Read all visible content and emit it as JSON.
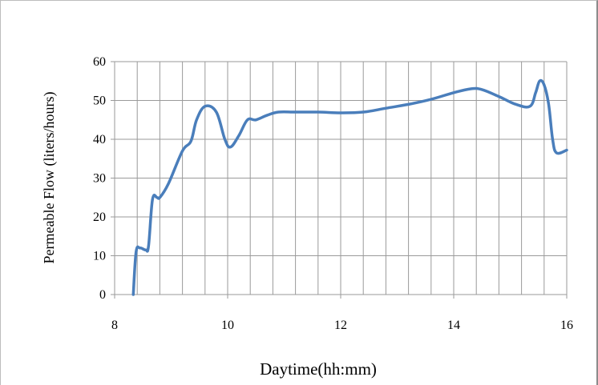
{
  "chart_data": {
    "type": "line",
    "title": "",
    "xlabel": "Daytime(hh:mm)",
    "ylabel": "Permeable Flow (liters/hours)",
    "xlim": [
      8,
      16
    ],
    "ylim": [
      0,
      60
    ],
    "xticks": [
      8,
      10,
      12,
      14,
      16
    ],
    "yticks": [
      0,
      10,
      20,
      30,
      40,
      50,
      60
    ],
    "x_minor_gridlines": [
      8.4,
      8.8,
      9.2,
      9.6,
      10.4,
      10.8,
      11.2,
      11.6,
      12.4,
      12.8,
      13.2,
      13.6,
      14.4,
      14.8,
      15.2,
      15.6
    ],
    "grid": true,
    "legend": "none",
    "series_color": "#4a7ebb",
    "series": [
      {
        "x": [
          8.33,
          8.38,
          8.45,
          8.55,
          8.6,
          8.67,
          8.75,
          8.8,
          8.95,
          9.2,
          9.35,
          9.45,
          9.6,
          9.8,
          9.95,
          10.05,
          10.2,
          10.35,
          10.5,
          10.7,
          10.9,
          11.2,
          11.6,
          12.0,
          12.4,
          12.8,
          13.2,
          13.6,
          14.0,
          14.3,
          14.5,
          14.8,
          15.1,
          15.35,
          15.45,
          15.52,
          15.6,
          15.68,
          15.75,
          15.82,
          16.0
        ],
        "y": [
          0,
          11,
          12,
          11.5,
          12.5,
          24.5,
          25,
          25,
          28.5,
          37,
          39.5,
          45,
          48.5,
          47,
          40,
          38,
          41,
          45,
          45,
          46.2,
          47,
          47,
          47,
          46.8,
          47,
          48,
          49,
          50.3,
          52,
          53,
          52.8,
          51,
          49,
          48.5,
          52,
          55,
          54,
          49,
          40,
          36.5,
          37.2
        ]
      }
    ]
  }
}
